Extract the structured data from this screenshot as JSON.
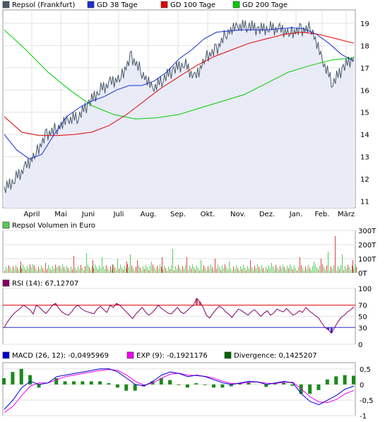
{
  "chart_data": [
    {
      "type": "line",
      "legend": [
        {
          "name": "Repsol (Frankfurt)",
          "color": "#4a5a6a"
        },
        {
          "name": "GD 38 Tage",
          "color": "#1a2fd0"
        },
        {
          "name": "GD 100 Tage",
          "color": "#e00000"
        },
        {
          "name": "GD 200 Tage",
          "color": "#00cc00"
        }
      ],
      "xlabels": [
        "April",
        "Mai",
        "Juni",
        "Juli",
        "Aug.",
        "Sep.",
        "Okt.",
        "Nov.",
        "Dez.",
        "Jan.",
        "Feb.",
        "März"
      ],
      "yticks": [
        11,
        12,
        13,
        14,
        15,
        16,
        17,
        18,
        19
      ],
      "ylim": [
        10.7,
        19.6
      ],
      "series": [
        {
          "name": "Repsol (Frankfurt)",
          "values": [
            11.5,
            12.0,
            12.5,
            13.2,
            14.0,
            14.3,
            14.6,
            14.8,
            15.4,
            16.0,
            16.3,
            16.6,
            17.5,
            16.8,
            16.0,
            16.5,
            16.9,
            17.2,
            16.5,
            17.5,
            17.8,
            18.6,
            18.8,
            18.9,
            18.7,
            18.8,
            18.7,
            18.6,
            18.7,
            18.8,
            17.3,
            16.3,
            17.0,
            17.5
          ]
        },
        {
          "name": "GD 38 Tage",
          "values": [
            14.0,
            13.3,
            12.9,
            13.1,
            14.0,
            14.8,
            15.2,
            15.5,
            15.7,
            16.0,
            16.2,
            16.2,
            16.4,
            16.8,
            17.4,
            17.8,
            18.3,
            18.6,
            18.65,
            18.7,
            18.7,
            18.7,
            18.75,
            18.8,
            18.75,
            18.5,
            18.1,
            17.6,
            17.3
          ]
        },
        {
          "name": "GD 100 Tage",
          "values": [
            14.8,
            14.1,
            13.95,
            13.95,
            14.0,
            14.1,
            14.4,
            14.9,
            15.5,
            16.1,
            16.6,
            17.1,
            17.5,
            17.8,
            18.1,
            18.3,
            18.5,
            18.6,
            18.5,
            18.3,
            18.1
          ]
        },
        {
          "name": "GD 200 Tage",
          "values": [
            18.7,
            17.8,
            16.8,
            16.0,
            15.3,
            14.9,
            14.7,
            14.75,
            14.9,
            15.2,
            15.5,
            15.8,
            16.3,
            16.8,
            17.1,
            17.35,
            17.45
          ]
        }
      ]
    },
    {
      "type": "bar",
      "legend": [
        {
          "name": "Repsol Volumen in Euro",
          "color": "#55cc55"
        }
      ],
      "yticks": [
        "0T",
        "100T",
        "200T",
        "300T"
      ],
      "ylim": [
        0,
        300
      ],
      "spikes": [
        10,
        25,
        42,
        60,
        78,
        100,
        118,
        127,
        140,
        155,
        162,
        175,
        180,
        190,
        210,
        225,
        240,
        260,
        280,
        300,
        320,
        350,
        380,
        420,
        440,
        450,
        460,
        470,
        480,
        495
      ],
      "spike_values": [
        40,
        80,
        60,
        70,
        50,
        120,
        140,
        90,
        110,
        60,
        100,
        80,
        130,
        90,
        80,
        110,
        170,
        110,
        90,
        100,
        80,
        90,
        70,
        110,
        80,
        100,
        150,
        260,
        130,
        90
      ]
    },
    {
      "type": "line",
      "title": "RSI (14): 67,12707",
      "legend_color": "#880066",
      "yticks": [
        0,
        30,
        50,
        70,
        100
      ],
      "ylim": [
        0,
        100
      ],
      "values": [
        30,
        40,
        48,
        55,
        60,
        64,
        70,
        66,
        62,
        54,
        70,
        66,
        60,
        55,
        62,
        70,
        73,
        64,
        58,
        54,
        52,
        58,
        66,
        70,
        64,
        60,
        58,
        56,
        55,
        63,
        68,
        62,
        57,
        70,
        66,
        73,
        70,
        64,
        58,
        52,
        46,
        54,
        60,
        66,
        58,
        52,
        56,
        62,
        70,
        64,
        60,
        56,
        54,
        60,
        66,
        58,
        55,
        60,
        66,
        70,
        82,
        76,
        66,
        52,
        47,
        55,
        62,
        68,
        65,
        58,
        54,
        48,
        56,
        63,
        60,
        56,
        52,
        58,
        62,
        56,
        50,
        56,
        60,
        52,
        56,
        63,
        60,
        58,
        64,
        58,
        52,
        55,
        60,
        57,
        66,
        60,
        56,
        51,
        47,
        38,
        30,
        26,
        20,
        30,
        40,
        48,
        52,
        58,
        62,
        67
      ]
    },
    {
      "type": "line",
      "legend": [
        {
          "name": "MACD (26, 12): -0,0495969",
          "color": "#0000cc"
        },
        {
          "name": "EXP (9): -0,1921176",
          "color": "#ee00ee"
        },
        {
          "name": "Divergence: 0,1425207",
          "color": "#006600"
        }
      ],
      "yticks": [
        "0,5",
        "0",
        "-0,5",
        "-1"
      ],
      "ylim": [
        -1,
        0.7
      ],
      "macd": [
        -0.8,
        -0.5,
        -0.1,
        0.1,
        0.0,
        0.05,
        0.25,
        0.3,
        0.35,
        0.4,
        0.45,
        0.5,
        0.5,
        0.4,
        0.2,
        0.0,
        -0.05,
        0.1,
        0.3,
        0.4,
        0.35,
        0.25,
        0.3,
        0.25,
        0.15,
        0.05,
        0.0,
        0.05,
        0.1,
        0.08,
        0.0,
        0.05,
        0.1,
        0.05,
        -0.3,
        -0.55,
        -0.65,
        -0.5,
        -0.35,
        -0.15,
        -0.05
      ],
      "exp": [
        -0.9,
        -0.7,
        -0.35,
        -0.05,
        0.05,
        0.05,
        0.15,
        0.25,
        0.3,
        0.35,
        0.4,
        0.45,
        0.48,
        0.45,
        0.3,
        0.1,
        -0.02,
        0.05,
        0.2,
        0.33,
        0.36,
        0.3,
        0.28,
        0.26,
        0.2,
        0.1,
        0.03,
        0.03,
        0.07,
        0.08,
        0.04,
        0.03,
        0.07,
        0.07,
        -0.15,
        -0.4,
        -0.56,
        -0.58,
        -0.48,
        -0.3,
        -0.19
      ]
    }
  ]
}
